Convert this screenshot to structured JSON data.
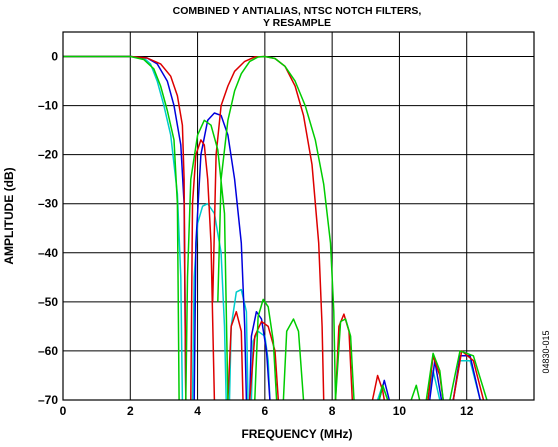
{
  "chart_data": {
    "type": "line",
    "title_line1": "COMBINED Y ANTIALIAS, NTSC NOTCH FILTERS,",
    "title_line2": "Y RESAMPLE",
    "xlabel": "FREQUENCY (MHz)",
    "ylabel": "AMPLITUDE (dB)",
    "xlim": [
      0,
      14
    ],
    "ylim": [
      -70,
      5
    ],
    "x_ticks": [
      0,
      2,
      4,
      6,
      8,
      10,
      12
    ],
    "x_tick_labels": [
      "0",
      "2",
      "4",
      "6",
      "8",
      "10",
      "12"
    ],
    "y_ticks": [
      0,
      -10,
      -20,
      -30,
      -40,
      -50,
      -60,
      -70
    ],
    "y_tick_labels": [
      "0",
      "–10",
      "–20",
      "–30",
      "–40",
      "–50",
      "–60",
      "–70"
    ],
    "grid": true,
    "figure_id": "04830-015",
    "series": [
      {
        "color": "#00cccc",
        "points": [
          [
            0,
            0
          ],
          [
            2.0,
            0
          ],
          [
            2.4,
            -0.3
          ],
          [
            2.6,
            -1.5
          ],
          [
            2.8,
            -5
          ],
          [
            3.0,
            -10
          ],
          [
            3.2,
            -16
          ],
          [
            3.4,
            -28
          ],
          [
            3.5,
            -45
          ],
          [
            3.55,
            -70
          ],
          null,
          [
            3.85,
            -70
          ],
          [
            3.9,
            -45
          ],
          [
            4.0,
            -34
          ],
          [
            4.15,
            -30.5
          ],
          [
            4.3,
            -30
          ],
          [
            4.5,
            -32
          ],
          [
            4.7,
            -40
          ],
          [
            4.8,
            -55
          ],
          [
            4.85,
            -70
          ],
          null,
          [
            4.95,
            -70
          ],
          [
            5.0,
            -55
          ],
          [
            5.15,
            -48
          ],
          [
            5.3,
            -47.5
          ],
          [
            5.45,
            -52
          ],
          [
            5.5,
            -70
          ],
          null,
          [
            5.6,
            -70
          ],
          [
            5.65,
            -58
          ],
          [
            5.8,
            -56
          ],
          [
            6.0,
            -57
          ],
          [
            6.1,
            -62
          ],
          [
            6.15,
            -70
          ],
          null,
          [
            9.35,
            -70
          ],
          [
            9.5,
            -67
          ],
          [
            9.65,
            -70
          ],
          null,
          [
            10.85,
            -70
          ],
          [
            11.0,
            -64
          ],
          [
            11.2,
            -70
          ],
          null,
          [
            11.6,
            -70
          ],
          [
            11.8,
            -62
          ],
          [
            12.1,
            -62
          ],
          [
            12.4,
            -70
          ]
        ]
      },
      {
        "color": "#0000dd",
        "points": [
          [
            0,
            0
          ],
          [
            2.0,
            0
          ],
          [
            2.5,
            -0.3
          ],
          [
            2.8,
            -1.5
          ],
          [
            3.1,
            -5
          ],
          [
            3.3,
            -10
          ],
          [
            3.5,
            -18
          ],
          [
            3.6,
            -30
          ],
          [
            3.65,
            -70
          ],
          null,
          [
            3.9,
            -70
          ],
          [
            3.95,
            -38
          ],
          [
            4.1,
            -20
          ],
          [
            4.3,
            -13
          ],
          [
            4.5,
            -11.5
          ],
          [
            4.7,
            -12
          ],
          [
            4.9,
            -16
          ],
          [
            5.1,
            -25
          ],
          [
            5.3,
            -38
          ],
          [
            5.4,
            -55
          ],
          [
            5.45,
            -70
          ],
          null,
          [
            5.55,
            -70
          ],
          [
            5.6,
            -57
          ],
          [
            5.75,
            -52
          ],
          [
            5.9,
            -53.5
          ],
          [
            6.05,
            -60
          ],
          [
            6.15,
            -70
          ],
          null,
          [
            9.4,
            -70
          ],
          [
            9.55,
            -66
          ],
          [
            9.7,
            -70
          ],
          null,
          [
            10.9,
            -70
          ],
          [
            11.05,
            -62
          ],
          [
            11.25,
            -70
          ],
          null,
          [
            11.6,
            -70
          ],
          [
            11.8,
            -61
          ],
          [
            12.1,
            -61
          ],
          [
            12.4,
            -70
          ]
        ]
      },
      {
        "color": "#dd0000",
        "points": [
          [
            0,
            0
          ],
          [
            2.0,
            0
          ],
          [
            2.5,
            -0.3
          ],
          [
            2.9,
            -1.5
          ],
          [
            3.2,
            -4
          ],
          [
            3.4,
            -8
          ],
          [
            3.55,
            -14
          ],
          [
            3.6,
            -25
          ],
          [
            3.65,
            -70
          ],
          null,
          [
            3.8,
            -70
          ],
          [
            3.85,
            -30
          ],
          [
            3.95,
            -20
          ],
          [
            4.1,
            -17
          ],
          [
            4.2,
            -18
          ],
          [
            4.3,
            -25
          ],
          [
            4.4,
            -38
          ],
          [
            4.5,
            -70
          ],
          null,
          [
            4.45,
            -50
          ],
          [
            4.55,
            -20
          ],
          [
            4.7,
            -10
          ],
          [
            4.9,
            -6
          ],
          [
            5.1,
            -3
          ],
          [
            5.4,
            -1
          ],
          [
            5.7,
            -0.1
          ],
          [
            6.0,
            0
          ],
          [
            6.3,
            -0.4
          ],
          [
            6.6,
            -2
          ],
          [
            6.9,
            -6
          ],
          [
            7.15,
            -12
          ],
          [
            7.4,
            -22
          ],
          [
            7.6,
            -38
          ],
          [
            7.7,
            -55
          ],
          [
            7.75,
            -70
          ],
          null,
          [
            4.9,
            -70
          ],
          [
            5.0,
            -55
          ],
          [
            5.15,
            -52
          ],
          [
            5.3,
            -56
          ],
          [
            5.35,
            -70
          ],
          null,
          [
            5.55,
            -70
          ],
          [
            5.7,
            -57
          ],
          [
            5.9,
            -54
          ],
          [
            6.1,
            -55
          ],
          [
            6.3,
            -60
          ],
          [
            6.4,
            -70
          ],
          null,
          [
            8.1,
            -70
          ],
          [
            8.2,
            -55
          ],
          [
            8.35,
            -52.5
          ],
          [
            8.5,
            -56
          ],
          [
            8.6,
            -70
          ],
          null,
          [
            9.2,
            -70
          ],
          [
            9.35,
            -65
          ],
          [
            9.5,
            -68
          ],
          [
            9.55,
            -70
          ],
          null,
          [
            10.85,
            -70
          ],
          [
            11.0,
            -61
          ],
          [
            11.2,
            -65
          ],
          [
            11.3,
            -70
          ],
          null,
          [
            11.6,
            -70
          ],
          [
            11.85,
            -60
          ],
          [
            12.2,
            -62
          ],
          [
            12.5,
            -70
          ]
        ]
      },
      {
        "color": "#00cc00",
        "points": [
          [
            0,
            0
          ],
          [
            2.0,
            0
          ],
          [
            2.4,
            -0.6
          ],
          [
            2.7,
            -2.5
          ],
          [
            2.9,
            -6
          ],
          [
            3.1,
            -11
          ],
          [
            3.3,
            -17
          ],
          [
            3.4,
            -30
          ],
          [
            3.45,
            -70
          ],
          null,
          [
            3.65,
            -70
          ],
          [
            3.7,
            -45
          ],
          [
            3.8,
            -25
          ],
          [
            4.0,
            -16
          ],
          [
            4.2,
            -13
          ],
          [
            4.4,
            -14
          ],
          [
            4.6,
            -19
          ],
          [
            4.8,
            -32
          ],
          [
            4.9,
            -70
          ],
          null,
          [
            4.6,
            -50
          ],
          [
            4.7,
            -25
          ],
          [
            4.9,
            -13
          ],
          [
            5.1,
            -7
          ],
          [
            5.3,
            -3.5
          ],
          [
            5.55,
            -1
          ],
          [
            5.8,
            -0.1
          ],
          [
            6.0,
            0
          ],
          [
            6.3,
            -0.4
          ],
          [
            6.6,
            -2
          ],
          [
            6.9,
            -5
          ],
          [
            7.2,
            -10
          ],
          [
            7.5,
            -17
          ],
          [
            7.75,
            -26
          ],
          [
            7.95,
            -38
          ],
          [
            8.05,
            -52
          ],
          [
            8.1,
            -70
          ],
          null,
          [
            5.7,
            -70
          ],
          [
            5.8,
            -53
          ],
          [
            5.95,
            -49.5
          ],
          [
            6.1,
            -51
          ],
          [
            6.25,
            -58
          ],
          [
            6.35,
            -70
          ],
          null,
          [
            6.55,
            -70
          ],
          [
            6.65,
            -56
          ],
          [
            6.85,
            -53.5
          ],
          [
            7.0,
            -56
          ],
          [
            7.15,
            -70
          ],
          null,
          [
            8.1,
            -70
          ],
          [
            8.25,
            -54
          ],
          [
            8.4,
            -53.5
          ],
          [
            8.55,
            -57
          ],
          [
            8.65,
            -70
          ],
          null,
          [
            9.4,
            -70
          ],
          [
            9.5,
            -67
          ],
          [
            9.65,
            -70
          ],
          null,
          [
            10.35,
            -70
          ],
          [
            10.5,
            -67
          ],
          [
            10.6,
            -70
          ],
          null,
          [
            10.8,
            -70
          ],
          [
            11.0,
            -60.5
          ],
          [
            11.2,
            -64
          ],
          [
            11.3,
            -70
          ],
          null,
          [
            11.5,
            -70
          ],
          [
            11.8,
            -60
          ],
          [
            12.2,
            -61
          ],
          [
            12.6,
            -70
          ]
        ]
      }
    ]
  }
}
